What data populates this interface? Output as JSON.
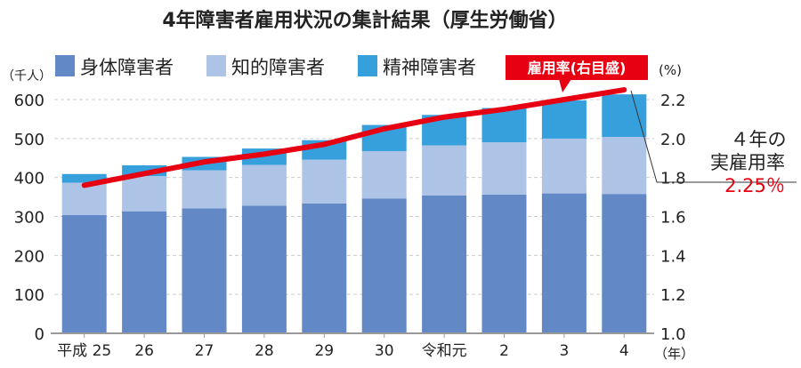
{
  "chart_data": {
    "type": "bar",
    "stacked": true,
    "title": "4年障害者雇用状況の集計結果（厚生労働省）",
    "categories": [
      "平成 25",
      "26",
      "27",
      "28",
      "29",
      "30",
      "令和元",
      "2",
      "3",
      "4"
    ],
    "x_unit": "（年）",
    "ylabel_left": "（千人）",
    "ylabel_right": "(%)",
    "ylim_left": [
      0,
      600
    ],
    "yticks_left": [
      "0",
      "100",
      "200",
      "300",
      "400",
      "500",
      "600"
    ],
    "ylim_right": [
      1.0,
      2.2
    ],
    "yticks_right": [
      "1.0",
      "1.2",
      "1.4",
      "1.6",
      "1.8",
      "2.0",
      "2.2"
    ],
    "grid": true,
    "legend_position": "top",
    "series": [
      {
        "name": "身体障害者",
        "color": "#6289c6",
        "values": [
          303.8,
          313.3,
          320.8,
          327.6,
          333.5,
          346.2,
          354.1,
          356.1,
          359.1,
          357.8
        ]
      },
      {
        "name": "知的障害者",
        "color": "#aec4e6",
        "values": [
          82.9,
          90.2,
          97.7,
          104.7,
          112.3,
          121.2,
          128.4,
          134.2,
          140.7,
          146.4
        ]
      },
      {
        "name": "精神障害者",
        "color": "#36a0dc",
        "values": [
          22.2,
          27.7,
          34.4,
          42.0,
          50.0,
          67.4,
          78.1,
          88.0,
          98.0,
          109.1
        ]
      }
    ],
    "line": {
      "name": "雇用率(右目盛)",
      "color": "#e60012",
      "axis": "right",
      "values": [
        1.76,
        1.82,
        1.88,
        1.92,
        1.97,
        2.05,
        2.11,
        2.15,
        2.2,
        2.25
      ]
    },
    "annotation": {
      "line1": "４年の",
      "line2": "実雇用率",
      "value": "2.25％"
    }
  }
}
